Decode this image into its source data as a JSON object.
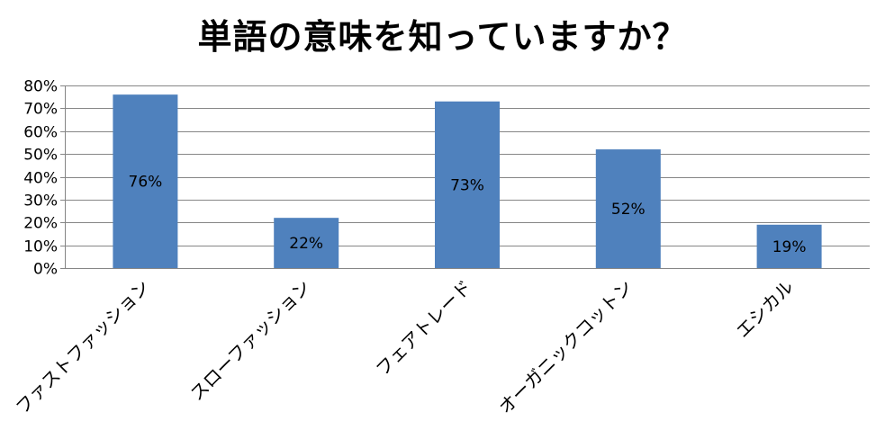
{
  "chart_data": {
    "type": "bar",
    "title": "単語の意味を知っていますか？",
    "categories": [
      "ファストファッション",
      "スローファッション",
      "フェアトレード",
      "オーガニックコットン",
      "エシカル"
    ],
    "values": [
      76,
      22,
      73,
      52,
      19
    ],
    "data_labels": [
      "76%",
      "22%",
      "73%",
      "52%",
      "19%"
    ],
    "ylim": [
      0,
      80
    ],
    "y_ticks": [
      0,
      10,
      20,
      30,
      40,
      50,
      60,
      70,
      80
    ],
    "y_tick_labels": [
      "0%",
      "10%",
      "20%",
      "30%",
      "40%",
      "50%",
      "60%",
      "70%",
      "80%"
    ],
    "xlabel": "",
    "ylabel": "",
    "grid": true,
    "legend": "none",
    "bar_color": "#4F81BD",
    "grid_color": "#868686"
  }
}
